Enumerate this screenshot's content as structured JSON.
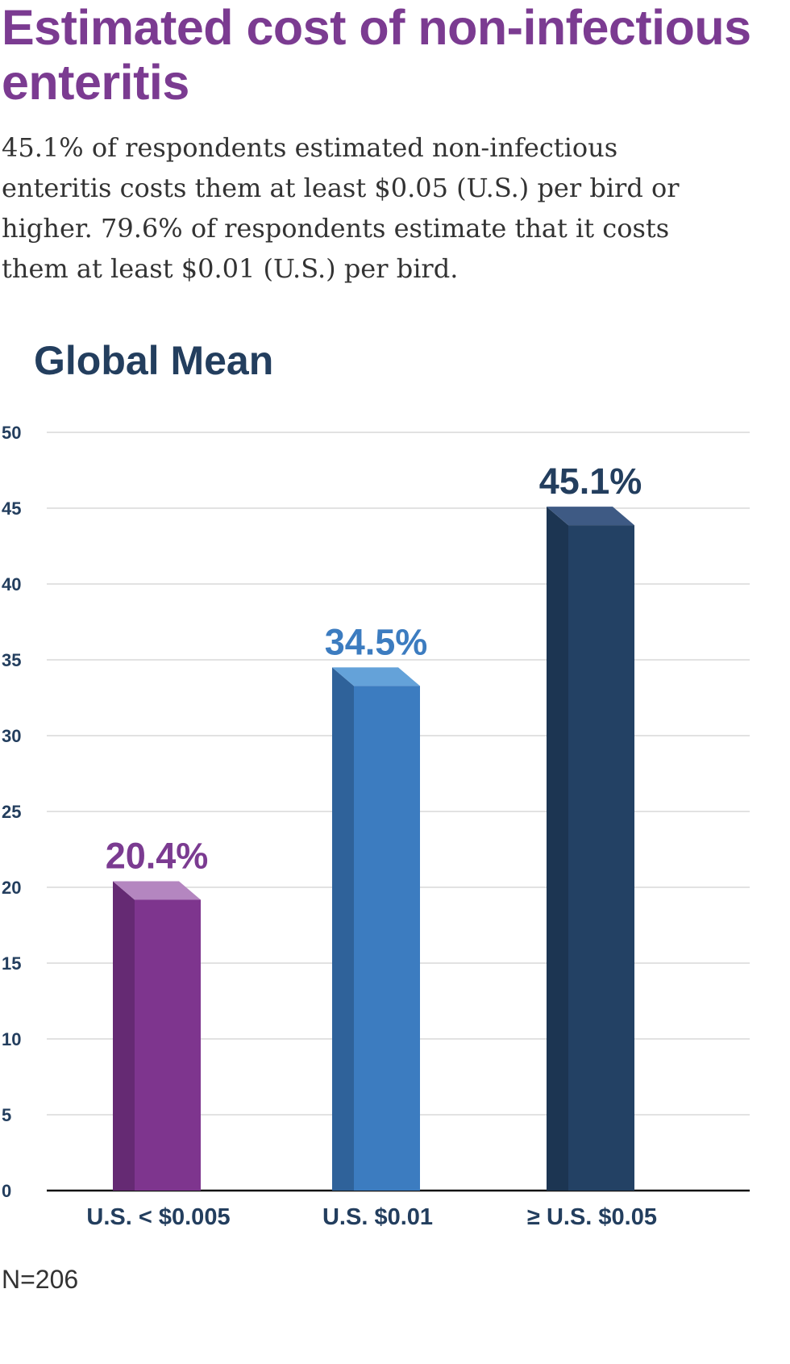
{
  "header": {
    "title": "Estimated cost of non-infectious enteritis",
    "subtitle": "45.1% of respondents estimated non-infectious enteritis costs them at least $0.05 (U.S.) per bird or higher. 79.6% of respondents estimate that it costs them at least $0.01 (U.S.) per bird."
  },
  "footer": {
    "note": "N=206"
  },
  "chart_data": {
    "type": "bar",
    "title": "Global Mean",
    "xlabel": "",
    "ylabel": "",
    "ylim": [
      0,
      50
    ],
    "yticks": [
      0,
      5,
      10,
      15,
      20,
      25,
      30,
      35,
      40,
      45,
      50
    ],
    "grid": true,
    "style": "3d-columns",
    "categories": [
      "U.S. < $0.005",
      "U.S. $0.01",
      "≥ U.S. $0.05"
    ],
    "values": [
      20.4,
      34.5,
      45.1
    ],
    "data_labels": [
      "20.4%",
      "34.5%",
      "45.1%"
    ],
    "colors": {
      "front": [
        "#7e358e",
        "#3c7cc0",
        "#234164"
      ],
      "side": [
        "#652a73",
        "#2f629a",
        "#1c3552"
      ],
      "top": [
        "#b486c0",
        "#64a2d9",
        "#3e5a84"
      ],
      "labels": [
        "#7b3b91",
        "#3c7cc0",
        "#233e5e"
      ],
      "axis_text": "#233e5e",
      "grid": "#d9d9d9",
      "baseline": "#111111"
    }
  }
}
